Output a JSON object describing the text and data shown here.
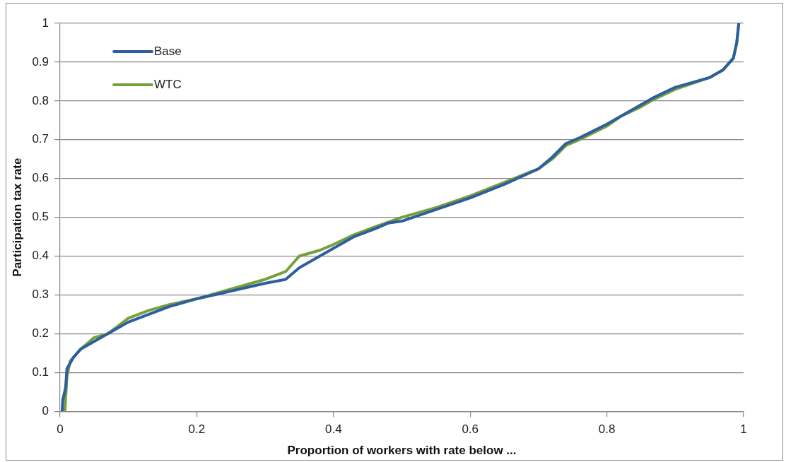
{
  "chart_data": {
    "type": "line",
    "xlabel": "Proportion of workers with rate below ...",
    "ylabel": "Participation tax rate",
    "xlim": [
      0,
      1
    ],
    "xticks": [
      0,
      0.2,
      0.4,
      0.6,
      0.8,
      1
    ],
    "ylim": [
      0,
      1
    ],
    "yticks": [
      0,
      0.1,
      0.2,
      0.3,
      0.4,
      0.5,
      0.6,
      0.7,
      0.8,
      0.9,
      1
    ],
    "grid": "y",
    "legend": "top left",
    "marker": "none",
    "line_style": "solid",
    "series": [
      {
        "name": "Base",
        "color": "#2e5e9e",
        "x": [
          0.003,
          0.004,
          0.008,
          0.01,
          0.02,
          0.03,
          0.05,
          0.07,
          0.1,
          0.13,
          0.16,
          0.2,
          0.25,
          0.3,
          0.33,
          0.35,
          0.38,
          0.4,
          0.43,
          0.46,
          0.48,
          0.5,
          0.55,
          0.6,
          0.65,
          0.7,
          0.72,
          0.74,
          0.76,
          0.8,
          0.82,
          0.85,
          0.87,
          0.9,
          0.95,
          0.97,
          0.985,
          0.99,
          0.993
        ],
        "values": [
          0,
          0.03,
          0.06,
          0.11,
          0.14,
          0.16,
          0.18,
          0.2,
          0.23,
          0.25,
          0.27,
          0.29,
          0.31,
          0.33,
          0.34,
          0.37,
          0.4,
          0.42,
          0.45,
          0.47,
          0.485,
          0.49,
          0.52,
          0.55,
          0.585,
          0.625,
          0.655,
          0.69,
          0.705,
          0.74,
          0.76,
          0.79,
          0.81,
          0.835,
          0.86,
          0.88,
          0.91,
          0.95,
          1
        ]
      },
      {
        "name": "WTC",
        "color": "#76a03a",
        "x": [
          0.007,
          0.01,
          0.015,
          0.03,
          0.05,
          0.07,
          0.1,
          0.13,
          0.16,
          0.2,
          0.25,
          0.3,
          0.33,
          0.35,
          0.38,
          0.4,
          0.43,
          0.46,
          0.5,
          0.55,
          0.6,
          0.65,
          0.7,
          0.72,
          0.74,
          0.76,
          0.8,
          0.82,
          0.85,
          0.87,
          0.9,
          0.95,
          0.97,
          0.985,
          0.99,
          0.993
        ],
        "values": [
          0,
          0.09,
          0.13,
          0.16,
          0.19,
          0.2,
          0.24,
          0.26,
          0.275,
          0.29,
          0.315,
          0.34,
          0.36,
          0.4,
          0.415,
          0.43,
          0.455,
          0.475,
          0.5,
          0.525,
          0.555,
          0.59,
          0.625,
          0.65,
          0.685,
          0.7,
          0.735,
          0.76,
          0.785,
          0.805,
          0.83,
          0.86,
          0.88,
          0.91,
          0.95,
          1
        ]
      }
    ]
  }
}
